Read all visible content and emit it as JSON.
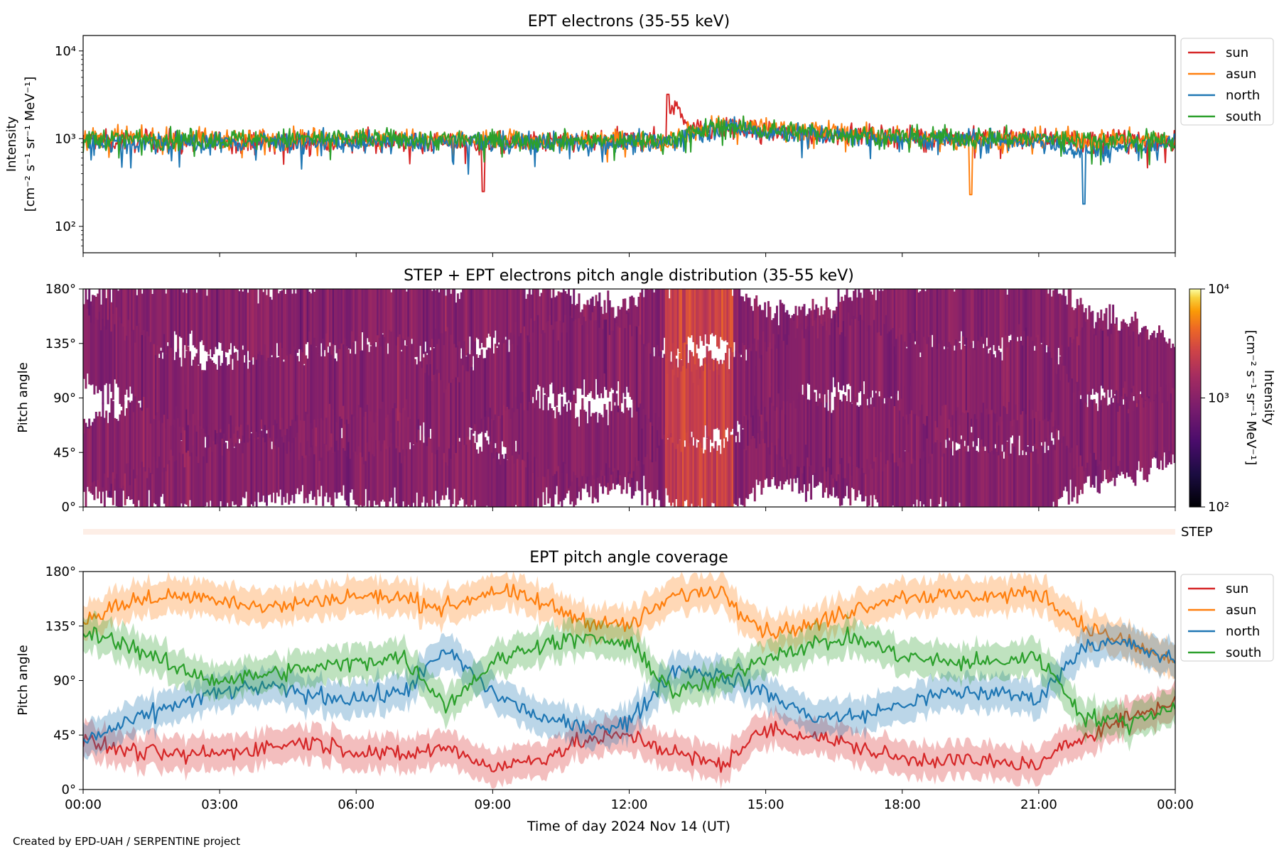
{
  "footer": "Created by EPD-UAH / SERPENTINE project",
  "x_axis": {
    "label": "Time of day 2024 Nov 14 (UT)",
    "range_hours": [
      0,
      24
    ],
    "ticks": [
      0,
      3,
      6,
      9,
      12,
      15,
      18,
      21,
      24
    ],
    "tick_labels": [
      "00:00",
      "03:00",
      "06:00",
      "09:00",
      "12:00",
      "15:00",
      "18:00",
      "21:00",
      "00:00"
    ]
  },
  "colors": {
    "sun": "#d62728",
    "asun": "#ff7f0e",
    "north": "#1f77b4",
    "south": "#2ca02c"
  },
  "strip_label": "STEP",
  "chart_data": [
    {
      "type": "line",
      "title": "EPT electrons (35-55 keV)",
      "ylabel": "Intensity",
      "ylabel_units": "[cm⁻² s⁻¹ sr⁻¹ MeV⁻¹]",
      "yscale": "log",
      "ylim": [
        50,
        15000
      ],
      "ytick_values": [
        100,
        1000,
        10000
      ],
      "ytick_labels": [
        "10²",
        "10³",
        "10⁴"
      ],
      "legend": [
        "sun",
        "asun",
        "north",
        "south"
      ],
      "legend_position": "outside right, top",
      "series": [
        {
          "name": "sun",
          "typical": 950,
          "knots": [
            [
              0,
              950
            ],
            [
              3,
              930
            ],
            [
              6,
              950
            ],
            [
              8.8,
              880
            ],
            [
              12.8,
              980
            ],
            [
              13.0,
              2600
            ],
            [
              13.2,
              1800
            ],
            [
              13.4,
              1250
            ],
            [
              14,
              1300
            ],
            [
              15,
              1200
            ],
            [
              18,
              1050
            ],
            [
              21,
              1000
            ],
            [
              24,
              920
            ]
          ]
        },
        {
          "name": "asun",
          "typical": 950,
          "knots": [
            [
              0,
              1000
            ],
            [
              3,
              1000
            ],
            [
              6,
              1000
            ],
            [
              9,
              960
            ],
            [
              12.8,
              950
            ],
            [
              13.0,
              1000
            ],
            [
              13.4,
              1200
            ],
            [
              14,
              1500
            ],
            [
              15,
              1350
            ],
            [
              18,
              1050
            ],
            [
              19,
              950
            ],
            [
              21,
              1000
            ],
            [
              24,
              950
            ]
          ]
        },
        {
          "name": "north",
          "typical": 900,
          "knots": [
            [
              0,
              900
            ],
            [
              3,
              900
            ],
            [
              6,
              920
            ],
            [
              9,
              900
            ],
            [
              12.8,
              900
            ],
            [
              13.4,
              1100
            ],
            [
              14,
              1350
            ],
            [
              15,
              1200
            ],
            [
              18,
              1000
            ],
            [
              21,
              950
            ],
            [
              22,
              700
            ],
            [
              24,
              900
            ]
          ]
        },
        {
          "name": "south",
          "typical": 950,
          "knots": [
            [
              0,
              1000
            ],
            [
              3,
              980
            ],
            [
              6,
              1000
            ],
            [
              9,
              950
            ],
            [
              12.8,
              950
            ],
            [
              13.4,
              1150
            ],
            [
              14,
              1400
            ],
            [
              15,
              1250
            ],
            [
              18,
              1050
            ],
            [
              21,
              1000
            ],
            [
              24,
              950
            ]
          ]
        }
      ],
      "notable_points": [
        {
          "series": "sun",
          "x": 12.85,
          "y": 3200
        },
        {
          "series": "sun",
          "x": 8.8,
          "y": 250
        },
        {
          "series": "north",
          "x": 22.0,
          "y": 180
        },
        {
          "series": "asun",
          "x": 19.5,
          "y": 230
        }
      ]
    },
    {
      "type": "heatmap",
      "title": "STEP + EPT electrons pitch angle distribution (35-55 keV)",
      "ylabel": "Pitch angle",
      "ylim": [
        0,
        180
      ],
      "ytick_values": [
        0,
        45,
        90,
        135,
        180
      ],
      "ytick_labels": [
        "0°",
        "45°",
        "90°",
        "135°",
        "180°"
      ],
      "colorbar": {
        "label": "Intensity",
        "units": "[cm⁻² s⁻¹ sr⁻¹ MeV⁻¹]",
        "scale": "log",
        "range": [
          100,
          10000
        ],
        "tick_labels": [
          "10²",
          "10³",
          "10⁴"
        ],
        "colormap": "inferno",
        "typical_value": 1000,
        "elevated_value": 2500,
        "elevated_interval_hours": [
          12.8,
          14.3
        ]
      }
    },
    {
      "type": "line",
      "title": "EPT pitch angle coverage",
      "ylabel": "Pitch angle",
      "ylim": [
        0,
        180
      ],
      "ytick_values": [
        0,
        45,
        90,
        135,
        180
      ],
      "ytick_labels": [
        "0°",
        "45°",
        "90°",
        "135°",
        "180°"
      ],
      "legend": [
        "sun",
        "asun",
        "north",
        "south"
      ],
      "legend_position": "outside right, top",
      "series": [
        {
          "name": "sun",
          "knots": [
            [
              0,
              40
            ],
            [
              1,
              32
            ],
            [
              2,
              28
            ],
            [
              3,
              30
            ],
            [
              4,
              35
            ],
            [
              5,
              40
            ],
            [
              6,
              32
            ],
            [
              7,
              28
            ],
            [
              8,
              35
            ],
            [
              9,
              18
            ],
            [
              10,
              25
            ],
            [
              11,
              40
            ],
            [
              12,
              45
            ],
            [
              13,
              30
            ],
            [
              14,
              20
            ],
            [
              15,
              50
            ],
            [
              16,
              45
            ],
            [
              17,
              35
            ],
            [
              18,
              25
            ],
            [
              19,
              25
            ],
            [
              20,
              22
            ],
            [
              21,
              20
            ],
            [
              22,
              45
            ],
            [
              23,
              60
            ],
            [
              24,
              72
            ]
          ]
        },
        {
          "name": "asun",
          "knots": [
            [
              0,
              140
            ],
            [
              1,
              155
            ],
            [
              2,
              160
            ],
            [
              3,
              158
            ],
            [
              4,
              150
            ],
            [
              5,
              155
            ],
            [
              6,
              160
            ],
            [
              7,
              158
            ],
            [
              8,
              150
            ],
            [
              9,
              165
            ],
            [
              10,
              155
            ],
            [
              11,
              140
            ],
            [
              12,
              135
            ],
            [
              13,
              160
            ],
            [
              14,
              165
            ],
            [
              15,
              130
            ],
            [
              16,
              135
            ],
            [
              17,
              150
            ],
            [
              18,
              160
            ],
            [
              19,
              160
            ],
            [
              20,
              160
            ],
            [
              21,
              162
            ],
            [
              22,
              135
            ],
            [
              23,
              120
            ],
            [
              24,
              105
            ]
          ]
        },
        {
          "name": "north",
          "knots": [
            [
              0,
              40
            ],
            [
              1,
              55
            ],
            [
              2,
              70
            ],
            [
              3,
              80
            ],
            [
              4,
              85
            ],
            [
              5,
              78
            ],
            [
              6,
              75
            ],
            [
              7,
              80
            ],
            [
              8,
              115
            ],
            [
              9,
              80
            ],
            [
              10,
              60
            ],
            [
              11,
              50
            ],
            [
              12,
              55
            ],
            [
              13,
              100
            ],
            [
              14,
              95
            ],
            [
              15,
              80
            ],
            [
              16,
              60
            ],
            [
              17,
              60
            ],
            [
              18,
              70
            ],
            [
              19,
              80
            ],
            [
              20,
              80
            ],
            [
              21,
              75
            ],
            [
              22,
              120
            ],
            [
              23,
              120
            ],
            [
              24,
              105
            ]
          ]
        },
        {
          "name": "south",
          "knots": [
            [
              0,
              130
            ],
            [
              1,
              120
            ],
            [
              2,
              100
            ],
            [
              3,
              90
            ],
            [
              4,
              95
            ],
            [
              5,
              100
            ],
            [
              6,
              105
            ],
            [
              7,
              110
            ],
            [
              8,
              70
            ],
            [
              9,
              105
            ],
            [
              10,
              120
            ],
            [
              11,
              125
            ],
            [
              12,
              120
            ],
            [
              13,
              80
            ],
            [
              14,
              90
            ],
            [
              15,
              110
            ],
            [
              16,
              120
            ],
            [
              17,
              125
            ],
            [
              18,
              110
            ],
            [
              19,
              105
            ],
            [
              20,
              105
            ],
            [
              21,
              110
            ],
            [
              22,
              60
            ],
            [
              23,
              55
            ],
            [
              24,
              70
            ]
          ]
        }
      ],
      "band_halfwidth_deg": 14
    }
  ]
}
